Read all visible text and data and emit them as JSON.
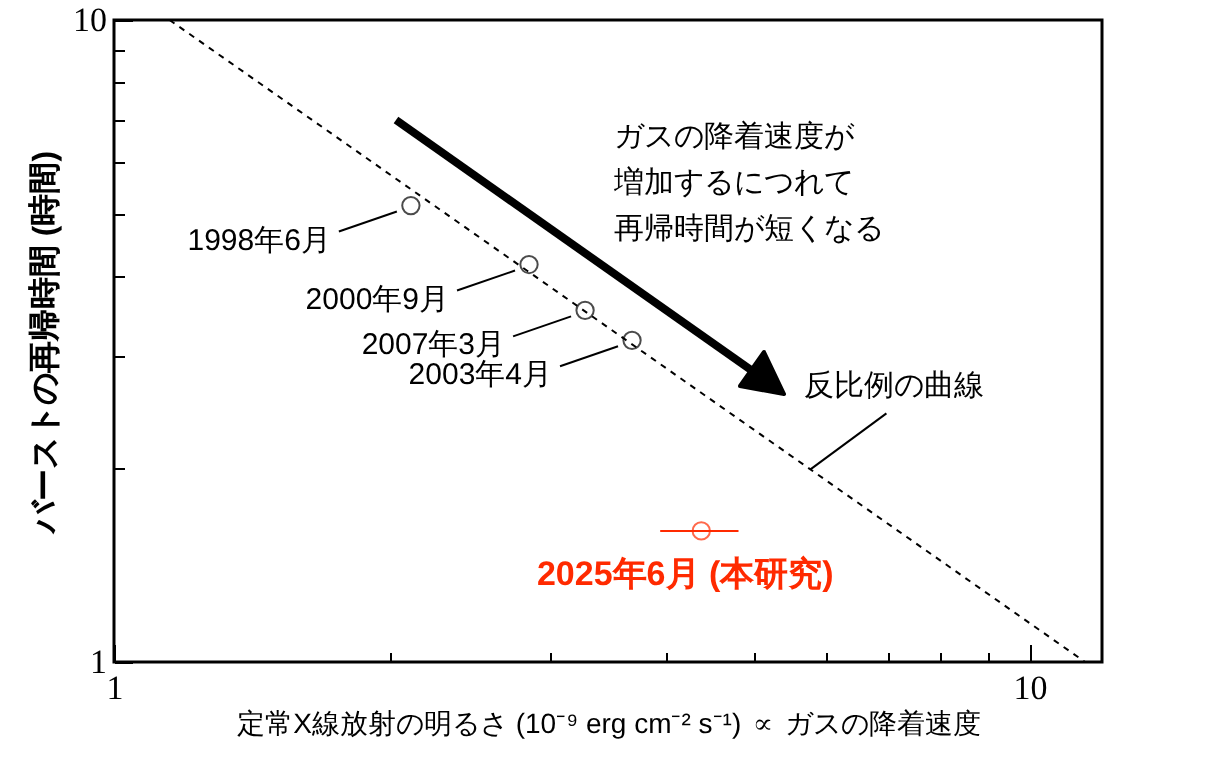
{
  "chart_data": {
    "type": "scatter",
    "xlabel": "定常X線放射の明るさ (10⁻⁹ erg cm⁻² s⁻¹) ∝ ガスの降着速度",
    "ylabel": "バーストの再帰時間 (時間)",
    "log": "xy",
    "xlim": [
      1,
      12
    ],
    "ylim": [
      1,
      10
    ],
    "xticks": [
      1,
      {
        "value": 2,
        "label": null
      },
      {
        "value": 3,
        "label": null
      },
      {
        "value": 4,
        "label": null
      },
      {
        "value": 5,
        "label": null
      },
      {
        "value": 6,
        "label": null
      },
      {
        "value": 7,
        "label": null
      },
      {
        "value": 8,
        "label": null
      },
      {
        "value": 9,
        "label": null
      },
      10
    ],
    "yticks": [
      1,
      {
        "value": 2,
        "label": null
      },
      {
        "value": 3,
        "label": null
      },
      {
        "value": 4,
        "label": null
      },
      {
        "value": 5,
        "label": null
      },
      {
        "value": 6,
        "label": null
      },
      {
        "value": 7,
        "label": null
      },
      {
        "value": 8,
        "label": null
      },
      {
        "value": 9,
        "label": null
      },
      10
    ],
    "series": [
      {
        "color": "#000000",
        "marker": "circle",
        "x": [
          2.11,
          2.84,
          3.27,
          3.68
        ],
        "values": [
          5.14,
          4.16,
          3.53,
          3.17
        ]
      },
      {
        "name": "2025年6月 (本研究)",
        "color": "#ff2a00",
        "marker": "circle",
        "x": [
          4.38
        ],
        "values": [
          1.6
        ],
        "xerrors": [
          [
            3.95,
            4.81
          ]
        ]
      },
      {
        "type": "line",
        "name": "反比例の曲線",
        "color": "#000000",
        "line_style": "dashed",
        "x": [
          1.15,
          11.5
        ],
        "values": [
          10,
          1
        ]
      }
    ],
    "annotations": [
      {
        "text": "1998年6月",
        "x": 2.11,
        "y": 5.14
      },
      {
        "text": "2000年9月",
        "x": 2.84,
        "y": 4.16
      },
      {
        "text": "2007年3月",
        "x": 3.27,
        "y": 3.53
      },
      {
        "text": "2003年4月",
        "x": 3.68,
        "y": 3.17
      },
      "ガスの降着速度が",
      "増加するにつれて",
      "再帰時間が短くなる"
    ]
  }
}
